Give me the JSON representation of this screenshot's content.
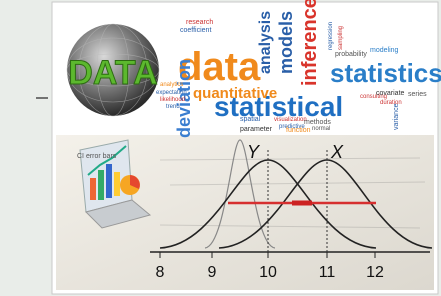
{
  "sphere_label": "DATA",
  "word_cloud": [
    "data",
    "statistics",
    "statistical",
    "quantitative",
    "analysis",
    "models",
    "inference",
    "deviation",
    "probability",
    "modeling",
    "research",
    "coefficient",
    "analytics",
    "expectation",
    "likelihood",
    "trend",
    "spatial",
    "visualization",
    "methods",
    "predictive",
    "normal",
    "parameter",
    "function",
    "consulting",
    "covariate",
    "duration",
    "series",
    "regression",
    "sampling",
    "variance"
  ],
  "plot": {
    "curve_labels": [
      "Y",
      "X"
    ],
    "annotation": "CI error bars",
    "x_axis_labels": [
      "8",
      "9",
      "10",
      "11",
      "12"
    ]
  }
}
